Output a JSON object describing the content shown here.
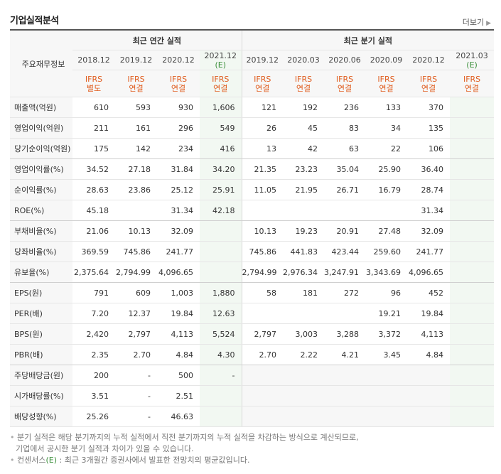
{
  "title": "기업실적분석",
  "more_label": "더보기",
  "header": {
    "row_label": "주요재무정보",
    "annual_label": "최근 연간 실적",
    "quarter_label": "최근 분기 실적",
    "annual_periods": [
      "2018.12",
      "2019.12",
      "2020.12",
      "2021.12"
    ],
    "quarter_periods": [
      "2019.12",
      "2020.03",
      "2020.06",
      "2020.09",
      "2020.12",
      "2021.03"
    ],
    "estimate_mark": "(E)",
    "annual_types": [
      [
        "IFRS",
        "별도"
      ],
      [
        "IFRS",
        "연결"
      ],
      [
        "IFRS",
        "연결"
      ],
      [
        "IFRS",
        "연결"
      ]
    ],
    "quarter_types": [
      [
        "IFRS",
        "연결"
      ],
      [
        "IFRS",
        "연결"
      ],
      [
        "IFRS",
        "연결"
      ],
      [
        "IFRS",
        "연결"
      ],
      [
        "IFRS",
        "연결"
      ],
      [
        "IFRS",
        "연결"
      ]
    ]
  },
  "rows": [
    {
      "label": "매출액(억원)",
      "annual": [
        "610",
        "593",
        "930",
        "1,606"
      ],
      "quarter": [
        "121",
        "192",
        "236",
        "133",
        "370",
        ""
      ]
    },
    {
      "label": "영업이익(억원)",
      "annual": [
        "211",
        "161",
        "296",
        "549"
      ],
      "quarter": [
        "26",
        "45",
        "83",
        "34",
        "135",
        ""
      ]
    },
    {
      "label": "당기순이익(억원)",
      "annual": [
        "175",
        "142",
        "234",
        "416"
      ],
      "quarter": [
        "13",
        "42",
        "63",
        "22",
        "106",
        ""
      ]
    },
    {
      "label": "영업이익률(%)",
      "annual": [
        "34.52",
        "27.18",
        "31.84",
        "34.20"
      ],
      "quarter": [
        "21.35",
        "23.23",
        "35.04",
        "25.90",
        "36.40",
        ""
      ]
    },
    {
      "label": "순이익률(%)",
      "annual": [
        "28.63",
        "23.86",
        "25.12",
        "25.91"
      ],
      "quarter": [
        "11.05",
        "21.95",
        "26.71",
        "16.79",
        "28.74",
        ""
      ]
    },
    {
      "label": "ROE(%)",
      "annual": [
        "45.18",
        "",
        "31.34",
        "42.18"
      ],
      "quarter": [
        "",
        "",
        "",
        "",
        "31.34",
        ""
      ]
    },
    {
      "label": "부채비율(%)",
      "annual": [
        "21.06",
        "10.13",
        "32.09",
        ""
      ],
      "quarter": [
        "10.13",
        "19.23",
        "20.91",
        "27.48",
        "32.09",
        ""
      ]
    },
    {
      "label": "당좌비율(%)",
      "annual": [
        "369.59",
        "745.86",
        "241.77",
        ""
      ],
      "quarter": [
        "745.86",
        "441.83",
        "423.44",
        "259.60",
        "241.77",
        ""
      ]
    },
    {
      "label": "유보율(%)",
      "annual": [
        "2,375.64",
        "2,794.99",
        "4,096.65",
        ""
      ],
      "quarter": [
        "2,794.99",
        "2,976.34",
        "3,247.91",
        "3,343.69",
        "4,096.65",
        ""
      ]
    },
    {
      "label": "EPS(원)",
      "annual": [
        "791",
        "609",
        "1,003",
        "1,880"
      ],
      "quarter": [
        "58",
        "181",
        "272",
        "96",
        "452",
        ""
      ]
    },
    {
      "label": "PER(배)",
      "annual": [
        "7.20",
        "12.37",
        "19.84",
        "12.63"
      ],
      "quarter": [
        "",
        "",
        "",
        "19.21",
        "19.84",
        ""
      ]
    },
    {
      "label": "BPS(원)",
      "annual": [
        "2,420",
        "2,797",
        "4,113",
        "5,524"
      ],
      "quarter": [
        "2,797",
        "3,003",
        "3,288",
        "3,372",
        "4,113",
        ""
      ]
    },
    {
      "label": "PBR(배)",
      "annual": [
        "2.35",
        "2.70",
        "4.84",
        "4.30"
      ],
      "quarter": [
        "2.70",
        "2.22",
        "4.21",
        "3.45",
        "4.84",
        ""
      ]
    },
    {
      "label": "주당배당금(원)",
      "annual": [
        "200",
        "-",
        "500",
        "-"
      ],
      "quarter": [
        "",
        "",
        "",
        "",
        "",
        ""
      ]
    },
    {
      "label": "시가배당률(%)",
      "annual": [
        "3.51",
        "-",
        "2.51",
        ""
      ],
      "quarter": [
        "",
        "",
        "",
        "",
        "",
        ""
      ]
    },
    {
      "label": "배당성향(%)",
      "annual": [
        "25.26",
        "-",
        "46.63",
        ""
      ],
      "quarter": [
        "",
        "",
        "",
        "",
        "",
        ""
      ]
    }
  ],
  "notes": {
    "line1": "분기 실적은 해당 분기까지의 누적 실적에서 직전 분기까지의 누적 실적을 차감하는 방식으로 계산되므로,",
    "line2": "기업에서 공시한 분기 실적과 차이가 있을 수 있습니다.",
    "line3_prefix": "컨센서스",
    "line3_mark": "(E)",
    "line3_suffix": ": 최근 3개월간 증권사에서 발표한 전망치의 평균값입니다."
  }
}
